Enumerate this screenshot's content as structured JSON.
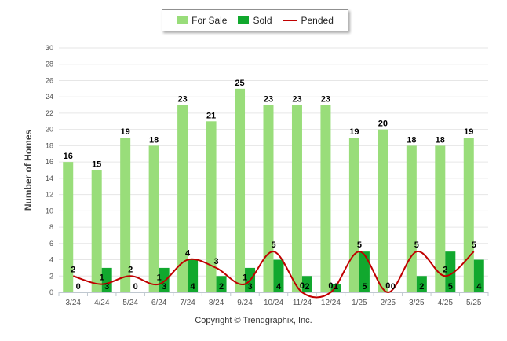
{
  "chart_data": {
    "type": "bar",
    "categories": [
      "3/24",
      "4/24",
      "5/24",
      "6/24",
      "7/24",
      "8/24",
      "9/24",
      "10/24",
      "11/24",
      "12/24",
      "1/25",
      "2/25",
      "3/25",
      "4/25",
      "5/25"
    ],
    "series": [
      {
        "name": "For Sale",
        "type": "bar",
        "color": "#99dd7a",
        "values": [
          16,
          15,
          19,
          18,
          23,
          21,
          25,
          23,
          23,
          23,
          19,
          20,
          18,
          18,
          19
        ]
      },
      {
        "name": "Sold",
        "type": "bar",
        "color": "#11a82e",
        "values": [
          0,
          3,
          0,
          3,
          4,
          2,
          3,
          4,
          2,
          1,
          5,
          0,
          2,
          5,
          4
        ]
      },
      {
        "name": "Pended",
        "type": "line",
        "color": "#c00000",
        "values": [
          2,
          1,
          2,
          1,
          4,
          3,
          1,
          5,
          0,
          0,
          5,
          0,
          5,
          2,
          5
        ]
      }
    ],
    "ylabel": "Number of Homes",
    "xlabel": "",
    "ylim": [
      0,
      30
    ],
    "yticks": [
      0,
      2,
      4,
      6,
      8,
      10,
      12,
      14,
      16,
      18,
      20,
      22,
      24,
      26,
      28,
      30
    ],
    "grid": true,
    "legend_position": "top-center"
  },
  "footer": {
    "copyright": "Copyright © Trendgraphix, Inc."
  }
}
